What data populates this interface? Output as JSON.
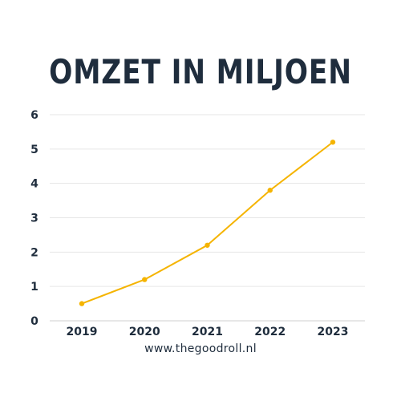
{
  "colors": {
    "line": "#f5b400",
    "title": "#1f2d3d",
    "grid": "#e6e6e6",
    "text": "#1f2d3d"
  },
  "footer": "www.thegoodroll.nl",
  "chart_data": {
    "type": "line",
    "title": "OMZET IN MILJOEN",
    "x": [
      "2019",
      "2020",
      "2021",
      "2022",
      "2023"
    ],
    "series": [
      {
        "values": [
          0.5,
          1.2,
          2.2,
          3.8,
          5.2
        ]
      }
    ],
    "ylim": [
      0,
      6
    ],
    "yticks": [
      0,
      1,
      2,
      3,
      4,
      5,
      6
    ],
    "grid": true,
    "xlabel": "",
    "ylabel": ""
  }
}
